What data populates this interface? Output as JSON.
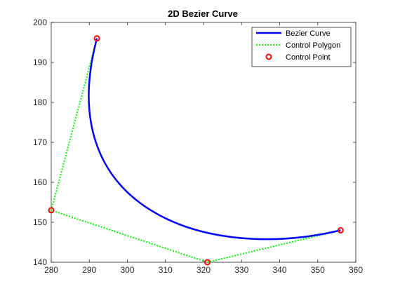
{
  "chart_data": {
    "type": "line",
    "title": "2D Bezier Curve",
    "xlabel": "",
    "ylabel": "",
    "xlim": [
      280,
      360
    ],
    "ylim": [
      140,
      200
    ],
    "xticks": [
      280,
      290,
      300,
      310,
      320,
      330,
      340,
      350,
      360
    ],
    "yticks": [
      140,
      150,
      160,
      170,
      180,
      190,
      200
    ],
    "xtick_labels": [
      "280",
      "290",
      "300",
      "310",
      "320",
      "330",
      "340",
      "350",
      "360"
    ],
    "ytick_labels": [
      "140",
      "150",
      "160",
      "170",
      "180",
      "190",
      "200"
    ],
    "grid": false,
    "legend_position": "top-right",
    "series": [
      {
        "name": "Bezier Curve",
        "kind": "bezier",
        "color": "#0000ff",
        "style": "solid",
        "x": [
          292,
          280,
          321,
          356
        ],
        "y": [
          196,
          153,
          140,
          148
        ]
      },
      {
        "name": "Control Polygon",
        "kind": "line",
        "color": "#00ff00",
        "style": "dotted",
        "x": [
          292,
          280,
          321,
          356
        ],
        "y": [
          196,
          153,
          140,
          148
        ]
      },
      {
        "name": "Control Point",
        "kind": "markers",
        "color": "#ff0000",
        "style": "circle",
        "x": [
          292,
          280,
          321,
          356
        ],
        "y": [
          196,
          153,
          140,
          148
        ]
      }
    ]
  }
}
